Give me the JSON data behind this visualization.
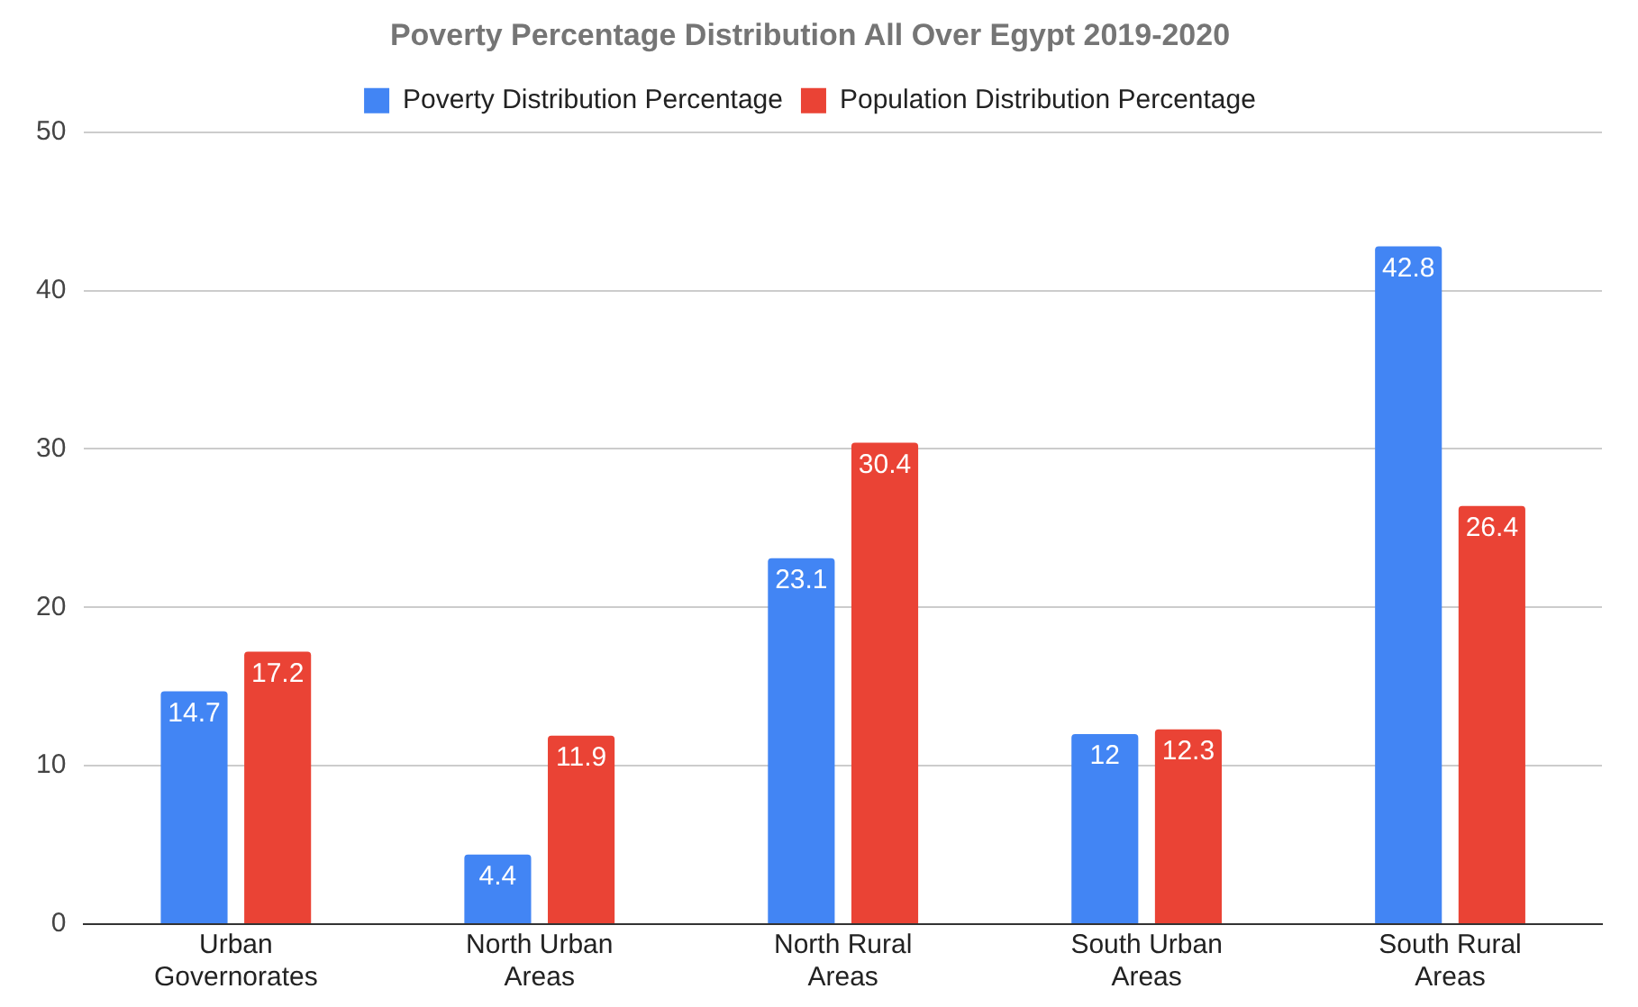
{
  "chart_data": {
    "type": "bar",
    "title": "Poverty Percentage Distribution All Over Egypt 2019-2020",
    "categories": [
      "Urban Governorates",
      "North Urban Areas",
      "North Rural Areas",
      "South Urban Areas",
      "South Rural Areas"
    ],
    "series": [
      {
        "name": "Poverty Distribution Percentage",
        "color": "#4285f4",
        "values": [
          14.7,
          4.4,
          23.1,
          12,
          42.8
        ]
      },
      {
        "name": "Population Distribution Percentage",
        "color": "#ea4335",
        "values": [
          17.2,
          11.9,
          30.4,
          12.3,
          26.4
        ]
      }
    ],
    "ylim": [
      0,
      50
    ],
    "yticks": [
      0,
      10,
      20,
      30,
      40,
      50
    ],
    "grid": "y",
    "legend": "top",
    "data_labels": true
  }
}
